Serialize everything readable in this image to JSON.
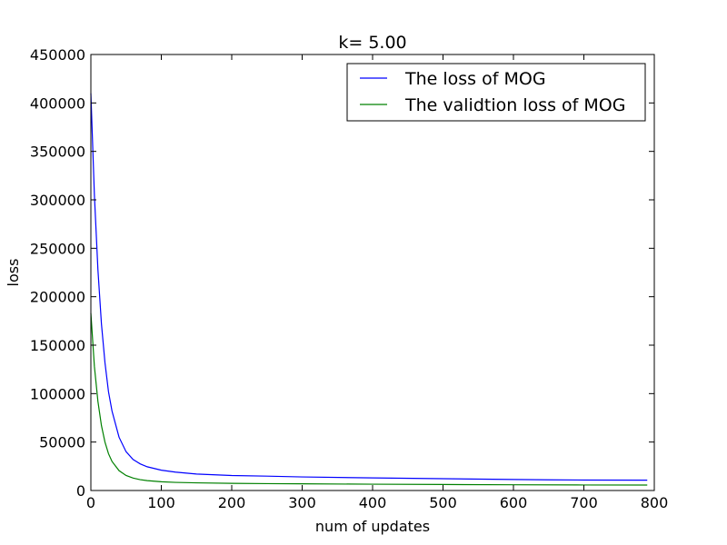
{
  "chart_data": {
    "type": "line",
    "title": "k= 5.00",
    "xlabel": "num of updates",
    "ylabel": "loss",
    "xlim": [
      0,
      800
    ],
    "ylim": [
      0,
      450000
    ],
    "xticks": [
      0,
      100,
      200,
      300,
      400,
      500,
      600,
      700,
      800
    ],
    "yticks": [
      0,
      50000,
      100000,
      150000,
      200000,
      250000,
      300000,
      350000,
      400000,
      450000
    ],
    "grid": false,
    "legend_position": "top-right",
    "series": [
      {
        "name": "The loss of MOG",
        "color": "#0000ff",
        "x": [
          0,
          5,
          10,
          15,
          20,
          25,
          30,
          40,
          50,
          60,
          70,
          80,
          100,
          120,
          150,
          200,
          250,
          300,
          400,
          500,
          600,
          650,
          700,
          790
        ],
        "y": [
          410000,
          305000,
          228000,
          172000,
          132000,
          102000,
          82000,
          55000,
          40000,
          32000,
          27500,
          24500,
          21000,
          19000,
          17000,
          15500,
          14800,
          14000,
          13000,
          12200,
          11400,
          11000,
          10800,
          10700
        ]
      },
      {
        "name": "The validtion loss of MOG",
        "color": "#008000",
        "x": [
          0,
          5,
          10,
          15,
          20,
          25,
          30,
          40,
          50,
          60,
          70,
          80,
          100,
          120,
          150,
          200,
          250,
          300,
          400,
          500,
          600,
          700,
          790
        ],
        "y": [
          183000,
          128000,
          92000,
          67000,
          50000,
          38000,
          30000,
          20500,
          15500,
          12800,
          11200,
          10200,
          9000,
          8400,
          7900,
          7400,
          7100,
          6900,
          6500,
          6200,
          5900,
          5700,
          5600
        ]
      }
    ]
  }
}
